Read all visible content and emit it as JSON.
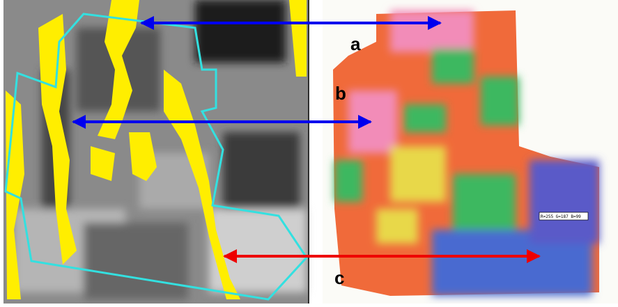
{
  "labels": [
    "a",
    "b",
    "c"
  ],
  "pixel_readout": "R=255 G=187 B=99"
}
